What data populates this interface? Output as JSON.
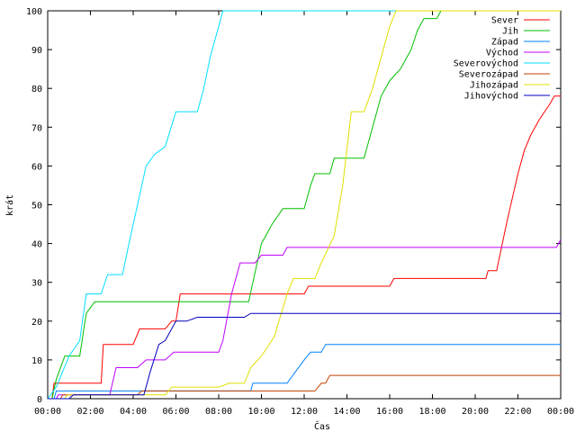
{
  "chart_data": {
    "type": "line",
    "title": "",
    "xlabel": "Čas",
    "ylabel": "krát",
    "xlim": [
      0,
      24
    ],
    "ylim": [
      0,
      100
    ],
    "x_ticks": [
      {
        "v": 0,
        "label": "00:00"
      },
      {
        "v": 2,
        "label": "02:00"
      },
      {
        "v": 4,
        "label": "04:00"
      },
      {
        "v": 6,
        "label": "06:00"
      },
      {
        "v": 8,
        "label": "08:00"
      },
      {
        "v": 10,
        "label": "10:00"
      },
      {
        "v": 12,
        "label": "12:00"
      },
      {
        "v": 14,
        "label": "14:00"
      },
      {
        "v": 16,
        "label": "16:00"
      },
      {
        "v": 18,
        "label": "18:00"
      },
      {
        "v": 20,
        "label": "20:00"
      },
      {
        "v": 22,
        "label": "22:00"
      },
      {
        "v": 24,
        "label": "00:00"
      }
    ],
    "y_ticks": [
      {
        "v": 0,
        "label": "0"
      },
      {
        "v": 10,
        "label": "10"
      },
      {
        "v": 20,
        "label": "20"
      },
      {
        "v": 30,
        "label": "30"
      },
      {
        "v": 40,
        "label": "40"
      },
      {
        "v": 50,
        "label": "50"
      },
      {
        "v": 60,
        "label": "60"
      },
      {
        "v": 70,
        "label": "70"
      },
      {
        "v": 80,
        "label": "80"
      },
      {
        "v": 90,
        "label": "90"
      },
      {
        "v": 100,
        "label": "100"
      }
    ],
    "grid": false,
    "legend": "top-right",
    "series": [
      {
        "name": "Sever",
        "color": "#ff0000",
        "points": [
          [
            0,
            0
          ],
          [
            0.2,
            0
          ],
          [
            0.3,
            4
          ],
          [
            1,
            4
          ],
          [
            2.5,
            4
          ],
          [
            2.6,
            14
          ],
          [
            4,
            14
          ],
          [
            4.3,
            18
          ],
          [
            5.5,
            18
          ],
          [
            5.8,
            20
          ],
          [
            6,
            20
          ],
          [
            6.2,
            27
          ],
          [
            12,
            27
          ],
          [
            12.2,
            29
          ],
          [
            16,
            29
          ],
          [
            16.2,
            31
          ],
          [
            20.5,
            31
          ],
          [
            20.6,
            33
          ],
          [
            21,
            33
          ],
          [
            21.5,
            46
          ],
          [
            22,
            58
          ],
          [
            22.3,
            64
          ],
          [
            22.6,
            68
          ],
          [
            23,
            72
          ],
          [
            23.5,
            76
          ],
          [
            23.7,
            78
          ],
          [
            24,
            78
          ]
        ]
      },
      {
        "name": "Jih",
        "color": "#00c000",
        "points": [
          [
            0,
            0
          ],
          [
            0.2,
            0
          ],
          [
            0.4,
            5
          ],
          [
            0.8,
            11
          ],
          [
            1.5,
            11
          ],
          [
            1.8,
            22
          ],
          [
            2.2,
            25
          ],
          [
            9.4,
            25
          ],
          [
            9.6,
            30
          ],
          [
            10,
            40
          ],
          [
            10.5,
            45
          ],
          [
            11,
            49
          ],
          [
            12,
            49
          ],
          [
            12.3,
            55
          ],
          [
            12.5,
            58
          ],
          [
            13.2,
            58
          ],
          [
            13.4,
            62
          ],
          [
            14.8,
            62
          ],
          [
            15.2,
            70
          ],
          [
            15.6,
            78
          ],
          [
            16,
            82
          ],
          [
            16.5,
            85
          ],
          [
            17,
            90
          ],
          [
            17.3,
            95
          ],
          [
            17.6,
            98
          ],
          [
            18.2,
            98
          ],
          [
            18.4,
            100
          ],
          [
            24,
            100
          ]
        ]
      },
      {
        "name": "Západ",
        "color": "#0080ff",
        "points": [
          [
            0,
            0
          ],
          [
            0.3,
            0
          ],
          [
            0.4,
            2
          ],
          [
            9.5,
            2
          ],
          [
            9.6,
            4
          ],
          [
            11.2,
            4
          ],
          [
            11.6,
            7
          ],
          [
            12,
            10
          ],
          [
            12.3,
            12
          ],
          [
            12.8,
            12
          ],
          [
            13,
            14
          ],
          [
            24,
            14
          ]
        ]
      },
      {
        "name": "Východ",
        "color": "#c000ff",
        "points": [
          [
            0,
            0
          ],
          [
            0.4,
            0
          ],
          [
            0.5,
            1
          ],
          [
            2.9,
            1
          ],
          [
            3.2,
            8
          ],
          [
            4.2,
            8
          ],
          [
            4.6,
            10
          ],
          [
            5.5,
            10
          ],
          [
            5.9,
            12
          ],
          [
            8,
            12
          ],
          [
            8.2,
            15
          ],
          [
            8.6,
            27
          ],
          [
            9,
            35
          ],
          [
            9.7,
            35
          ],
          [
            10,
            37
          ],
          [
            11,
            37
          ],
          [
            11.2,
            39
          ],
          [
            23.8,
            39
          ],
          [
            24,
            41
          ]
        ]
      },
      {
        "name": "Severovýchod",
        "color": "#00e0ff",
        "points": [
          [
            0,
            0
          ],
          [
            0.4,
            3
          ],
          [
            1,
            11
          ],
          [
            1.5,
            15
          ],
          [
            1.8,
            27
          ],
          [
            2.5,
            27
          ],
          [
            2.8,
            32
          ],
          [
            3.5,
            32
          ],
          [
            3.8,
            40
          ],
          [
            4.2,
            50
          ],
          [
            4.6,
            60
          ],
          [
            5,
            63
          ],
          [
            5.5,
            65
          ],
          [
            6,
            74
          ],
          [
            7,
            74
          ],
          [
            7.3,
            80
          ],
          [
            7.6,
            88
          ],
          [
            8,
            96
          ],
          [
            8.2,
            100
          ],
          [
            24,
            100
          ]
        ]
      },
      {
        "name": "Severozápad",
        "color": "#c04000",
        "points": [
          [
            0,
            0
          ],
          [
            0.6,
            0
          ],
          [
            0.7,
            1
          ],
          [
            4.2,
            1
          ],
          [
            4.4,
            2
          ],
          [
            12.5,
            2
          ],
          [
            12.8,
            4
          ],
          [
            13,
            4
          ],
          [
            13.2,
            6
          ],
          [
            24,
            6
          ]
        ]
      },
      {
        "name": "Jihozápad",
        "color": "#e0e000",
        "points": [
          [
            0,
            0
          ],
          [
            0.8,
            0
          ],
          [
            0.9,
            1
          ],
          [
            5.5,
            1
          ],
          [
            5.8,
            3
          ],
          [
            8,
            3
          ],
          [
            8.5,
            4
          ],
          [
            9.2,
            4
          ],
          [
            9.5,
            8
          ],
          [
            10,
            11
          ],
          [
            10.6,
            16
          ],
          [
            11.2,
            27
          ],
          [
            11.5,
            31
          ],
          [
            12.5,
            31
          ],
          [
            12.8,
            35
          ],
          [
            13.4,
            42
          ],
          [
            13.8,
            55
          ],
          [
            14.2,
            74
          ],
          [
            14.8,
            74
          ],
          [
            15.2,
            80
          ],
          [
            15.5,
            86
          ],
          [
            16,
            96
          ],
          [
            16.3,
            100
          ],
          [
            24,
            100
          ]
        ]
      },
      {
        "name": "Jihovýchod",
        "color": "#0000c0",
        "points": [
          [
            0,
            0
          ],
          [
            1,
            0
          ],
          [
            1.2,
            1
          ],
          [
            4.5,
            1
          ],
          [
            4.8,
            7
          ],
          [
            5.2,
            14
          ],
          [
            5.5,
            15
          ],
          [
            6,
            20
          ],
          [
            6.5,
            20
          ],
          [
            7,
            21
          ],
          [
            9.2,
            21
          ],
          [
            9.5,
            22
          ],
          [
            24,
            22
          ]
        ]
      }
    ]
  }
}
